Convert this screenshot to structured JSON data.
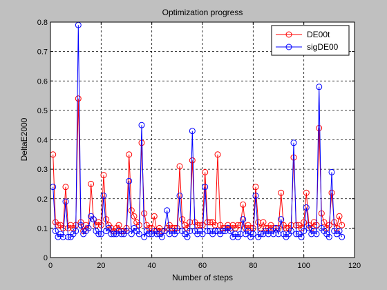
{
  "chart_data": {
    "type": "line",
    "title": "Optimization progress",
    "xlabel": "Number of steps",
    "ylabel": "DeltaE2000",
    "xlim": [
      0,
      120
    ],
    "ylim": [
      0,
      0.8
    ],
    "xticks": [
      0,
      20,
      40,
      60,
      80,
      100,
      120
    ],
    "yticks": [
      0,
      0.1,
      0.2,
      0.3,
      0.4,
      0.5,
      0.6,
      0.7,
      0.8
    ],
    "grid": true,
    "legend_position": "top-right",
    "series": [
      {
        "name": "DE00t",
        "color": "#ff0000",
        "marker": "circle",
        "x": [
          1,
          2,
          3,
          4,
          5,
          6,
          7,
          8,
          9,
          10,
          11,
          12,
          13,
          14,
          15,
          16,
          17,
          18,
          19,
          20,
          21,
          22,
          23,
          24,
          25,
          26,
          27,
          28,
          29,
          30,
          31,
          32,
          33,
          34,
          35,
          36,
          37,
          38,
          39,
          40,
          41,
          42,
          43,
          44,
          45,
          46,
          47,
          48,
          49,
          50,
          51,
          52,
          53,
          54,
          55,
          56,
          57,
          58,
          59,
          60,
          61,
          62,
          63,
          64,
          65,
          66,
          67,
          68,
          69,
          70,
          71,
          72,
          73,
          74,
          75,
          76,
          77,
          78,
          79,
          80,
          81,
          82,
          83,
          84,
          85,
          86,
          87,
          88,
          89,
          90,
          91,
          92,
          93,
          94,
          95,
          96,
          97,
          98,
          99,
          100,
          101,
          102,
          103,
          104,
          105,
          106,
          107,
          108,
          109,
          110,
          111,
          112,
          113,
          114,
          115
        ],
        "y": [
          0.35,
          0.12,
          0.11,
          0.11,
          0.1,
          0.24,
          0.1,
          0.11,
          0.1,
          0.11,
          0.54,
          0.12,
          0.09,
          0.11,
          0.1,
          0.25,
          0.13,
          0.11,
          0.12,
          0.11,
          0.28,
          0.13,
          0.11,
          0.1,
          0.09,
          0.1,
          0.11,
          0.09,
          0.09,
          0.1,
          0.35,
          0.16,
          0.14,
          0.12,
          0.11,
          0.39,
          0.15,
          0.11,
          0.1,
          0.1,
          0.14,
          0.09,
          0.1,
          0.09,
          0.09,
          0.1,
          0.11,
          0.1,
          0.1,
          0.1,
          0.31,
          0.13,
          0.11,
          0.1,
          0.12,
          0.33,
          0.12,
          0.11,
          0.11,
          0.11,
          0.29,
          0.12,
          0.12,
          0.12,
          0.11,
          0.35,
          0.11,
          0.1,
          0.1,
          0.11,
          0.1,
          0.11,
          0.1,
          0.11,
          0.11,
          0.18,
          0.1,
          0.11,
          0.1,
          0.1,
          0.24,
          0.12,
          0.1,
          0.12,
          0.1,
          0.1,
          0.11,
          0.1,
          0.1,
          0.1,
          0.22,
          0.11,
          0.1,
          0.1,
          0.11,
          0.34,
          0.11,
          0.11,
          0.1,
          0.12,
          0.22,
          0.11,
          0.1,
          0.12,
          0.11,
          0.44,
          0.15,
          0.12,
          0.1,
          0.11,
          0.22,
          0.12,
          0.1,
          0.14,
          0.11
        ]
      },
      {
        "name": "sigDE00",
        "color": "#0000ff",
        "marker": "circle",
        "x": [
          1,
          2,
          3,
          4,
          5,
          6,
          7,
          8,
          9,
          10,
          11,
          12,
          13,
          14,
          15,
          16,
          17,
          18,
          19,
          20,
          21,
          22,
          23,
          24,
          25,
          26,
          27,
          28,
          29,
          30,
          31,
          32,
          33,
          34,
          35,
          36,
          37,
          38,
          39,
          40,
          41,
          42,
          43,
          44,
          45,
          46,
          47,
          48,
          49,
          50,
          51,
          52,
          53,
          54,
          55,
          56,
          57,
          58,
          59,
          60,
          61,
          62,
          63,
          64,
          65,
          66,
          67,
          68,
          69,
          70,
          71,
          72,
          73,
          74,
          75,
          76,
          77,
          78,
          79,
          80,
          81,
          82,
          83,
          84,
          85,
          86,
          87,
          88,
          89,
          90,
          91,
          92,
          93,
          94,
          95,
          96,
          97,
          98,
          99,
          100,
          101,
          102,
          103,
          104,
          105,
          106,
          107,
          108,
          109,
          110,
          111,
          112,
          113,
          114,
          115
        ],
        "y": [
          0.24,
          0.09,
          0.07,
          0.08,
          0.07,
          0.19,
          0.07,
          0.07,
          0.08,
          0.09,
          0.79,
          0.11,
          0.08,
          0.09,
          0.1,
          0.14,
          0.13,
          0.09,
          0.08,
          0.08,
          0.21,
          0.09,
          0.1,
          0.08,
          0.08,
          0.08,
          0.09,
          0.08,
          0.08,
          0.09,
          0.26,
          0.08,
          0.1,
          0.09,
          0.08,
          0.45,
          0.07,
          0.09,
          0.08,
          0.08,
          0.09,
          0.08,
          0.08,
          0.07,
          0.09,
          0.16,
          0.08,
          0.09,
          0.08,
          0.09,
          0.21,
          0.09,
          0.08,
          0.07,
          0.09,
          0.43,
          0.09,
          0.08,
          0.09,
          0.08,
          0.24,
          0.09,
          0.09,
          0.08,
          0.09,
          0.09,
          0.08,
          0.09,
          0.09,
          0.1,
          0.09,
          0.07,
          0.08,
          0.07,
          0.08,
          0.13,
          0.08,
          0.09,
          0.07,
          0.08,
          0.21,
          0.07,
          0.08,
          0.08,
          0.09,
          0.08,
          0.09,
          0.08,
          0.1,
          0.08,
          0.13,
          0.08,
          0.07,
          0.08,
          0.09,
          0.39,
          0.08,
          0.08,
          0.07,
          0.09,
          0.17,
          0.1,
          0.08,
          0.09,
          0.08,
          0.58,
          0.1,
          0.09,
          0.08,
          0.07,
          0.29,
          0.09,
          0.08,
          0.09,
          0.07
        ]
      }
    ]
  }
}
